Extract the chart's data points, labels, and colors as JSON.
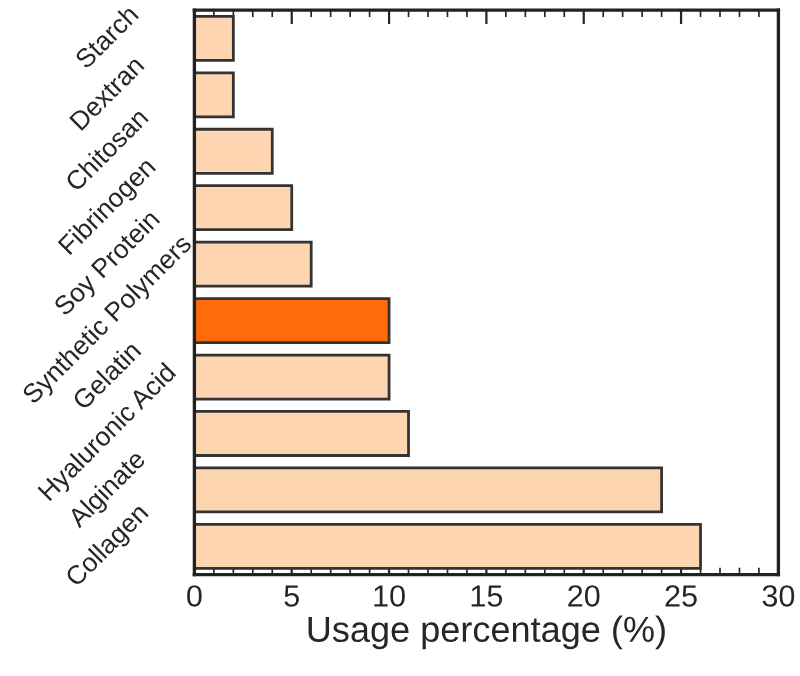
{
  "chart_data": {
    "type": "bar",
    "orientation": "horizontal",
    "xlabel": "Usage percentage (%)",
    "categories": [
      "Starch",
      "Dextran",
      "Chitosan",
      "Fibrinogen",
      "Soy Protein",
      "Synthetic Polymers",
      "Gelatin",
      "Hyaluronic Acid",
      "Alginate",
      "Collagen"
    ],
    "values": [
      2,
      2,
      4,
      5,
      6,
      10,
      10,
      11,
      24,
      26
    ],
    "colors": [
      "#fdd5b1",
      "#fdd5b1",
      "#fdd5b1",
      "#fdd5b1",
      "#fdd5b1",
      "#ff6a0a",
      "#fdd5b1",
      "#fdd5b1",
      "#fdd5b1",
      "#fdd5b1"
    ],
    "xlim": [
      0,
      30
    ],
    "xticks": [
      0,
      5,
      10,
      15,
      20,
      25,
      30
    ],
    "grid": false
  }
}
